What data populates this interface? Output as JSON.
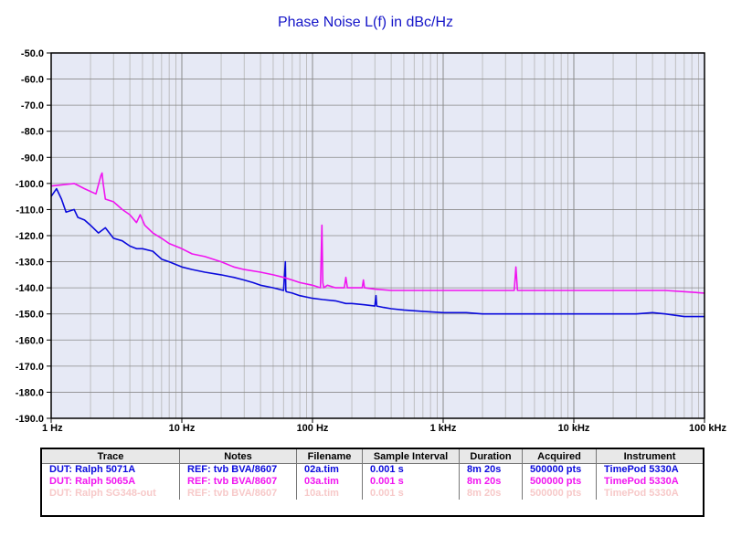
{
  "chart_data": {
    "type": "line",
    "title": "Phase Noise L(f) in dBc/Hz",
    "x_scale": "log",
    "xlim": [
      1,
      100000
    ],
    "ylim": [
      -190,
      -50
    ],
    "x_ticks": [
      1,
      10,
      100,
      1000,
      10000,
      100000
    ],
    "x_tick_labels": [
      "1 Hz",
      "10 Hz",
      "100 Hz",
      "1 kHz",
      "10 kHz",
      "100 kHz"
    ],
    "y_ticks": [
      -50,
      -60,
      -70,
      -80,
      -90,
      -100,
      -110,
      -120,
      -130,
      -140,
      -150,
      -160,
      -170,
      -180,
      -190
    ],
    "y_tick_labels": [
      "-50.0",
      "-60.0",
      "-70.0",
      "-80.0",
      "-90.0",
      "-100.0",
      "-110.0",
      "-120.0",
      "-130.0",
      "-140.0",
      "-150.0",
      "-160.0",
      "-170.0",
      "-180.0",
      "-190.0"
    ],
    "grid": true,
    "plot_background": "#e6e9f5",
    "grid_major_color": "#8a8a8a",
    "grid_minor_color": "#b4b4b4",
    "series": [
      {
        "name": "DUT: Ralph 5071A",
        "color": "#0a0adc",
        "x": [
          1,
          1.1,
          1.2,
          1.3,
          1.5,
          1.6,
          1.8,
          2,
          2.3,
          2.6,
          3,
          3.5,
          4,
          4.5,
          5,
          6,
          7,
          8,
          10,
          12,
          15,
          20,
          25,
          30,
          35,
          40,
          50,
          60,
          62,
          62.5,
          63,
          70,
          80,
          100,
          120,
          150,
          180,
          200,
          250,
          300,
          306,
          310,
          350,
          400,
          500,
          700,
          1000,
          1500,
          2000,
          3000,
          5000,
          7000,
          10000,
          15000,
          20000,
          30000,
          40000,
          50000,
          70000,
          100000
        ],
        "y": [
          -105,
          -102,
          -106,
          -111,
          -110,
          -113,
          -114,
          -116,
          -119,
          -117,
          -121,
          -122,
          -124,
          -125,
          -125,
          -126,
          -129,
          -130,
          -132,
          -133,
          -134,
          -135,
          -136,
          -137,
          -138,
          -139,
          -140,
          -141,
          -130,
          -141,
          -141.5,
          -142,
          -143,
          -144,
          -144.5,
          -145,
          -146,
          -146,
          -146.5,
          -147,
          -143,
          -147,
          -147.5,
          -148,
          -148.5,
          -149,
          -149.5,
          -149.5,
          -150,
          -150,
          -150,
          -150,
          -150,
          -150,
          -150,
          -150,
          -149.5,
          -150,
          -151,
          -151
        ]
      },
      {
        "name": "DUT: Ralph 5065A",
        "color": "#f014f0",
        "x": [
          1,
          1.5,
          1.8,
          2.2,
          2.4,
          2.45,
          2.5,
          2.6,
          3,
          3.5,
          4,
          4.5,
          4.8,
          5,
          5.2,
          6,
          7,
          8,
          10,
          12,
          15,
          20,
          25,
          30,
          40,
          50,
          60,
          70,
          80,
          100,
          115,
          118,
          120,
          122,
          130,
          150,
          175,
          180,
          185,
          200,
          240,
          245,
          250,
          300,
          400,
          500,
          700,
          1000,
          1500,
          2000,
          3000,
          3500,
          3600,
          3700,
          4000,
          5000,
          7000,
          10000,
          20000,
          50000,
          100000
        ],
        "y": [
          -101,
          -100,
          -102,
          -104,
          -97,
          -96,
          -100,
          -106,
          -107,
          -110,
          -112,
          -115,
          -112,
          -114,
          -116,
          -119,
          -121,
          -123,
          -125,
          -127,
          -128,
          -130,
          -132,
          -133,
          -134,
          -135,
          -136,
          -137,
          -138,
          -139,
          -140,
          -116,
          -138,
          -140,
          -139,
          -140,
          -140,
          -136,
          -140,
          -140,
          -140,
          -137,
          -140,
          -140.5,
          -141,
          -141,
          -141,
          -141,
          -141,
          -141,
          -141,
          -141,
          -132,
          -141,
          -141,
          -141,
          -141,
          -141,
          -141,
          -141,
          -142
        ]
      }
    ]
  },
  "legend_table": {
    "headers": {
      "trace": "Trace",
      "notes": "Notes",
      "filename": "Filename",
      "sample_interval": "Sample Interval",
      "duration": "Duration",
      "acquired": "Acquired",
      "instrument": "Instrument"
    },
    "rows": [
      {
        "trace": "DUT: Ralph 5071A",
        "notes": "REF: tvb BVA/8607",
        "filename": "02a.tim",
        "sample_interval": "0.001 s",
        "duration": "8m 20s",
        "acquired": "500000 pts",
        "instrument": "TimePod 5330A",
        "color": "#0a0adc"
      },
      {
        "trace": "DUT: Ralph 5065A",
        "notes": "REF: tvb BVA/8607",
        "filename": "03a.tim",
        "sample_interval": "0.001 s",
        "duration": "8m 20s",
        "acquired": "500000 pts",
        "instrument": "TimePod 5330A",
        "color": "#f014f0"
      },
      {
        "trace": "DUT: Ralph SG348-out",
        "notes": "REF: tvb BVA/8607",
        "filename": "10a.tim",
        "sample_interval": "0.001 s",
        "duration": "8m 20s",
        "acquired": "500000 pts",
        "instrument": "TimePod 5330A",
        "color": "#f7c9c9"
      }
    ]
  }
}
